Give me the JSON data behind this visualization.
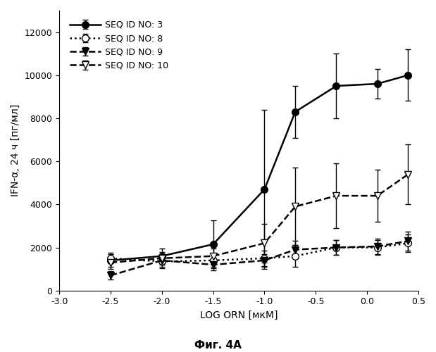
{
  "title": "Фиг. 4A",
  "xlabel": "LOG ORN [мкМ]",
  "ylabel": "IFN-α, 24 ч [пг/мл]",
  "xlim": [
    -3.0,
    0.5
  ],
  "ylim": [
    0,
    13000
  ],
  "xticks": [
    -3.0,
    -2.5,
    -2.0,
    -1.5,
    -1.0,
    -0.5,
    0.0,
    0.5
  ],
  "yticks": [
    0,
    2000,
    4000,
    6000,
    8000,
    10000,
    12000
  ],
  "series": [
    {
      "label": "SEQ ID NO: 3",
      "x": [
        -2.5,
        -2.0,
        -1.5,
        -1.0,
        -0.7,
        -0.3,
        0.1,
        0.4
      ],
      "y": [
        1400,
        1600,
        2150,
        4700,
        8300,
        9500,
        9600,
        10000
      ],
      "yerr": [
        300,
        350,
        1100,
        3700,
        1200,
        1500,
        700,
        1200
      ],
      "linestyle": "-",
      "marker": "o",
      "markerfacecolor": "black",
      "color": "black",
      "linewidth": 1.8
    },
    {
      "label": "SEQ ID NO: 8",
      "x": [
        -2.5,
        -2.0,
        -1.5,
        -1.0,
        -0.7,
        -0.3,
        0.1,
        0.4
      ],
      "y": [
        1500,
        1350,
        1400,
        1500,
        1600,
        2000,
        2000,
        2200
      ],
      "yerr": [
        250,
        300,
        300,
        350,
        500,
        350,
        350,
        400
      ],
      "linestyle": ":",
      "marker": "o",
      "markerfacecolor": "white",
      "color": "black",
      "linewidth": 1.8
    },
    {
      "label": "SEQ ID NO: 9",
      "x": [
        -2.5,
        -2.0,
        -1.5,
        -1.0,
        -0.7,
        -0.3,
        0.1,
        0.4
      ],
      "y": [
        700,
        1400,
        1200,
        1400,
        1900,
        2000,
        2050,
        2300
      ],
      "yerr": [
        200,
        300,
        250,
        300,
        400,
        350,
        350,
        450
      ],
      "linestyle": "--",
      "marker": "v",
      "markerfacecolor": "black",
      "color": "black",
      "linewidth": 1.8
    },
    {
      "label": "SEQ ID NO: 10",
      "x": [
        -2.5,
        -2.0,
        -1.5,
        -1.0,
        -0.7,
        -0.3,
        0.1,
        0.4
      ],
      "y": [
        1300,
        1500,
        1600,
        2200,
        3900,
        4400,
        4400,
        5400
      ],
      "yerr": [
        300,
        300,
        350,
        900,
        1800,
        1500,
        1200,
        1400
      ],
      "linestyle": "--",
      "marker": "v",
      "markerfacecolor": "white",
      "color": "black",
      "linewidth": 1.8
    }
  ]
}
